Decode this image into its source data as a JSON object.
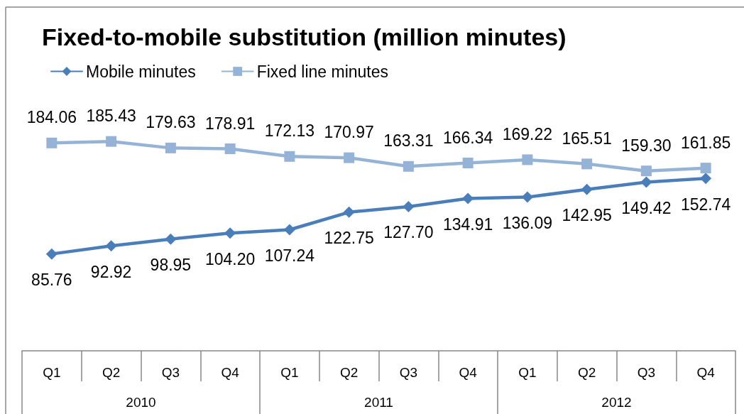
{
  "chart_data": {
    "type": "line",
    "title": "Fixed-to-mobile substitution (million minutes)",
    "categories": [
      "Q1",
      "Q2",
      "Q3",
      "Q4",
      "Q1",
      "Q2",
      "Q3",
      "Q4",
      "Q1",
      "Q2",
      "Q3",
      "Q4"
    ],
    "annotations": [
      "2010",
      "2011",
      "2012"
    ],
    "series": [
      {
        "name": "Mobile minutes",
        "color": "#4a7ebb",
        "marker": "diamond",
        "values": [
          85.76,
          92.92,
          98.95,
          104.2,
          107.24,
          122.75,
          127.7,
          134.91,
          136.09,
          142.95,
          149.42,
          152.74
        ],
        "value_labels": [
          "85.76",
          "92.92",
          "98.95",
          "104.20",
          "107.24",
          "122.75",
          "127.70",
          "134.91",
          "136.09",
          "142.95",
          "149.42",
          "152.74"
        ]
      },
      {
        "name": "Fixed line minutes",
        "color": "#95b3d7",
        "marker": "square",
        "values": [
          184.06,
          185.43,
          179.63,
          178.91,
          172.13,
          170.97,
          163.31,
          166.34,
          169.22,
          165.51,
          159.3,
          161.85
        ],
        "value_labels": [
          "184.06",
          "185.43",
          "179.63",
          "178.91",
          "172.13",
          "170.97",
          "163.31",
          "166.34",
          "169.22",
          "165.51",
          "159.30",
          "161.85"
        ]
      }
    ],
    "legend": "top left"
  }
}
